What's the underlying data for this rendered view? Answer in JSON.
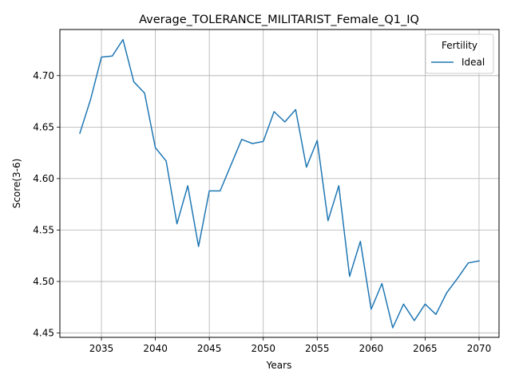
{
  "chart_data": {
    "type": "line",
    "title": "Average_TOLERANCE_MILITARIST_Female_Q1_IQ",
    "xlabel": "Years",
    "ylabel": "Score(3-6)",
    "xlim": [
      2031.15,
      2071.85
    ],
    "ylim": [
      4.4457,
      4.7448
    ],
    "xticks": [
      2035,
      2040,
      2045,
      2050,
      2055,
      2060,
      2065,
      2070
    ],
    "yticks": [
      4.45,
      4.5,
      4.55,
      4.6,
      4.65,
      4.7
    ],
    "grid": true,
    "legend": {
      "title": "Fertility",
      "position": "top-right"
    },
    "series": [
      {
        "name": "Ideal",
        "color": "#1f77b4",
        "x": [
          2033,
          2034,
          2035,
          2036,
          2037,
          2038,
          2039,
          2040,
          2041,
          2042,
          2043,
          2044,
          2045,
          2046,
          2047,
          2048,
          2049,
          2050,
          2051,
          2052,
          2053,
          2054,
          2055,
          2056,
          2057,
          2058,
          2059,
          2060,
          2061,
          2062,
          2063,
          2064,
          2065,
          2066,
          2067,
          2068,
          2069,
          2070
        ],
        "y": [
          4.644,
          4.677,
          4.718,
          4.719,
          4.735,
          4.694,
          4.683,
          4.63,
          4.617,
          4.556,
          4.593,
          4.534,
          4.588,
          4.588,
          4.613,
          4.638,
          4.634,
          4.636,
          4.665,
          4.655,
          4.667,
          4.611,
          4.637,
          4.559,
          4.593,
          4.505,
          4.539,
          4.473,
          4.498,
          4.455,
          4.478,
          4.462,
          4.478,
          4.468,
          4.489,
          4.503,
          4.518,
          4.52
        ]
      }
    ]
  }
}
